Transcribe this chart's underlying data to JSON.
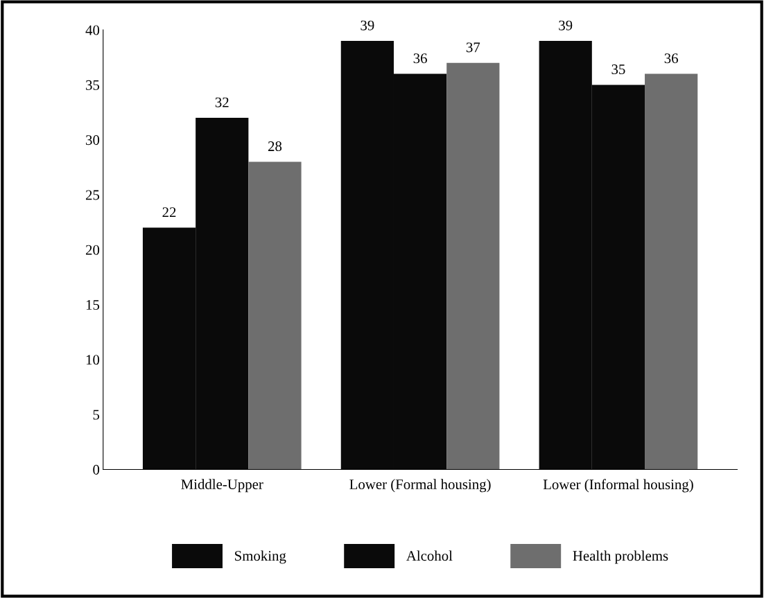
{
  "chart_data": {
    "type": "bar",
    "categories": [
      "Middle-Upper",
      "Lower (Formal housing)",
      "Lower (Informal housing)"
    ],
    "series": [
      {
        "name": "Smoking",
        "color": "#0a0a0a",
        "values": [
          22,
          39,
          39
        ]
      },
      {
        "name": "Alcohol",
        "color": "#0a0a0a",
        "values": [
          32,
          36,
          35
        ]
      },
      {
        "name": "Health problems",
        "color": "#6e6e6e",
        "values": [
          28,
          37,
          36
        ]
      }
    ],
    "ylim": [
      0,
      40
    ],
    "yticks": [
      0,
      5,
      10,
      15,
      20,
      25,
      30,
      35,
      40
    ],
    "data_labels": true,
    "legend": "bottom",
    "grid": false
  }
}
